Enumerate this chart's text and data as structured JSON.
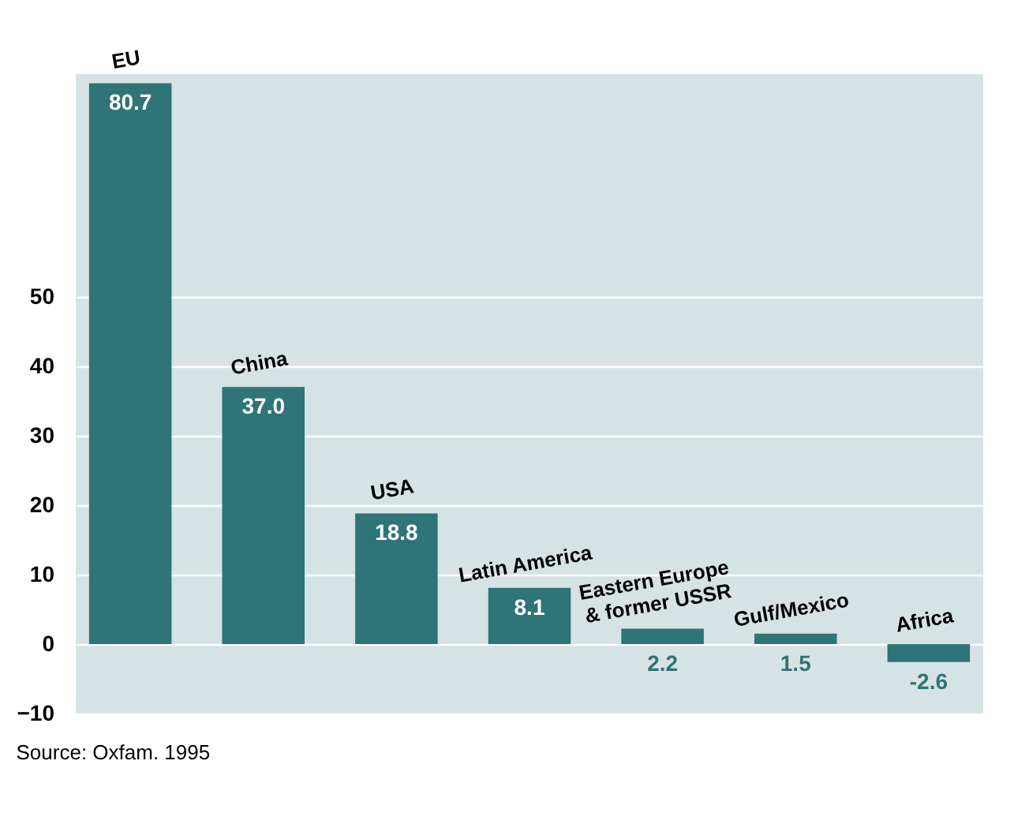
{
  "chart_data": {
    "type": "bar",
    "categories": [
      "EU",
      "China",
      "USA",
      "Latin America",
      "Eastern Europe & former USSR",
      "Gulf/Mexico",
      "Africa"
    ],
    "values": [
      80.7,
      37.0,
      18.8,
      8.1,
      2.2,
      1.5,
      -2.6
    ],
    "value_labels": [
      "80.7",
      "37.0",
      "18.8",
      "8.1",
      "2.2",
      "1.5",
      "-2.6"
    ],
    "color": "#2f7477",
    "ylim": [
      -10,
      82
    ],
    "yticks": [
      -10,
      0,
      10,
      20,
      30,
      40,
      50
    ],
    "grid": "y",
    "annotations": [
      "Source: Oxfam. 1995"
    ]
  }
}
